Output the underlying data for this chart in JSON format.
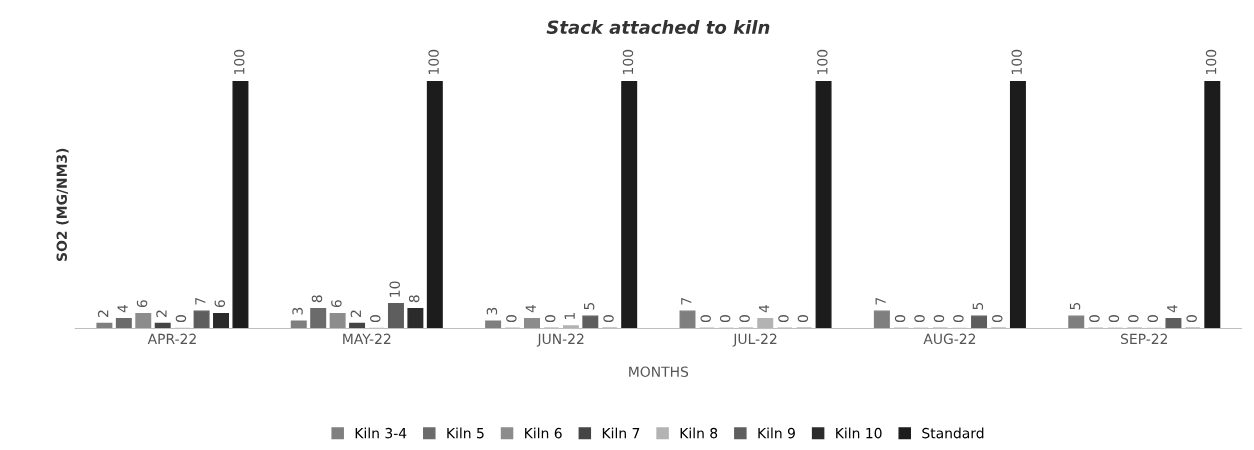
{
  "chart_data": {
    "type": "bar",
    "title": "Stack attached to kiln",
    "xlabel": "MONTHS",
    "ylabel": "SO2 (MG/NM3)",
    "categories": [
      "APR-22",
      "MAY-22",
      "JUN-22",
      "JUL-22",
      "AUG-22",
      "SEP-22"
    ],
    "series": [
      {
        "name": "Kiln 3-4",
        "color": "#7f7f7f",
        "values": [
          2,
          3,
          3,
          7,
          7,
          5
        ]
      },
      {
        "name": "Kiln 5",
        "color": "#6b6b6b",
        "values": [
          4,
          8,
          0,
          0,
          0,
          0
        ]
      },
      {
        "name": "Kiln 6",
        "color": "#8c8c8c",
        "values": [
          6,
          6,
          4,
          0,
          0,
          0
        ]
      },
      {
        "name": "Kiln 7",
        "color": "#454545",
        "values": [
          2,
          2,
          0,
          0,
          0,
          0
        ]
      },
      {
        "name": "Kiln 8",
        "color": "#b3b3b3",
        "values": [
          0,
          0,
          1,
          4,
          0,
          0
        ]
      },
      {
        "name": "Kiln 9",
        "color": "#5e5e5e",
        "values": [
          7,
          10,
          5,
          0,
          5,
          4
        ]
      },
      {
        "name": "Kiln 10",
        "color": "#2b2b2b",
        "values": [
          6,
          8,
          0,
          0,
          0,
          0
        ]
      },
      {
        "name": "Standard",
        "color": "#1c1c1c",
        "values": [
          100,
          100,
          100,
          100,
          100,
          100
        ]
      }
    ],
    "data_labels": true,
    "tick_labels": "x",
    "grid": false,
    "legend": "bottom"
  }
}
